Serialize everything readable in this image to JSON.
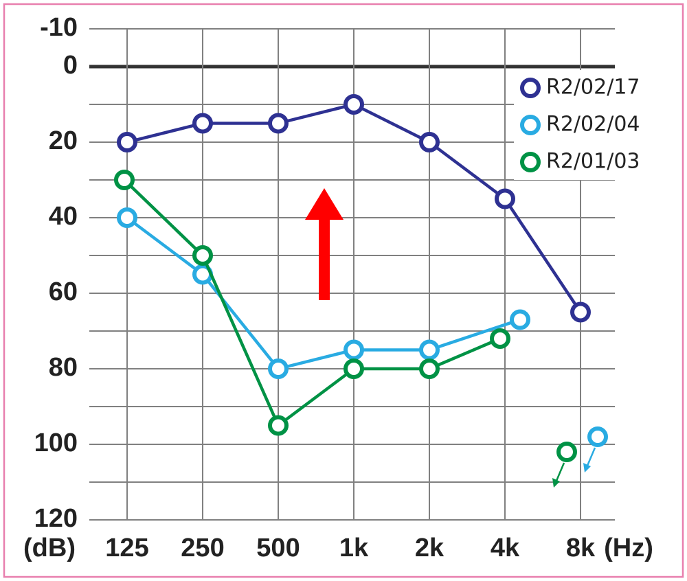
{
  "chart_data": {
    "type": "line",
    "categories": [
      "125",
      "250",
      "500",
      "1k",
      "2k",
      "4k",
      "8k"
    ],
    "xlabel": "(Hz)",
    "ylabel": "(dB)",
    "ylim": [
      -10,
      120
    ],
    "yticks": [
      -10,
      0,
      20,
      40,
      60,
      80,
      100,
      120
    ],
    "ygrid": [
      -10,
      0,
      10,
      20,
      30,
      40,
      50,
      60,
      70,
      80,
      90,
      100,
      110,
      120
    ],
    "inverted_y": true,
    "grid": true,
    "series": [
      {
        "name": "R2/02/17",
        "color": "#2e3192",
        "values": [
          20,
          15,
          15,
          10,
          20,
          35,
          65
        ],
        "scale_out": [
          null,
          null,
          null,
          null,
          null,
          null,
          null
        ]
      },
      {
        "name": "R2/02/04",
        "color": "#29abe2",
        "values": [
          40,
          55,
          80,
          75,
          75,
          67,
          null
        ],
        "scale_out": [
          null,
          null,
          null,
          null,
          null,
          null,
          98
        ]
      },
      {
        "name": "R2/01/03",
        "color": "#009245",
        "values": [
          30,
          50,
          95,
          80,
          80,
          72,
          null
        ],
        "scale_out": [
          null,
          null,
          null,
          null,
          null,
          null,
          102
        ]
      }
    ]
  }
}
